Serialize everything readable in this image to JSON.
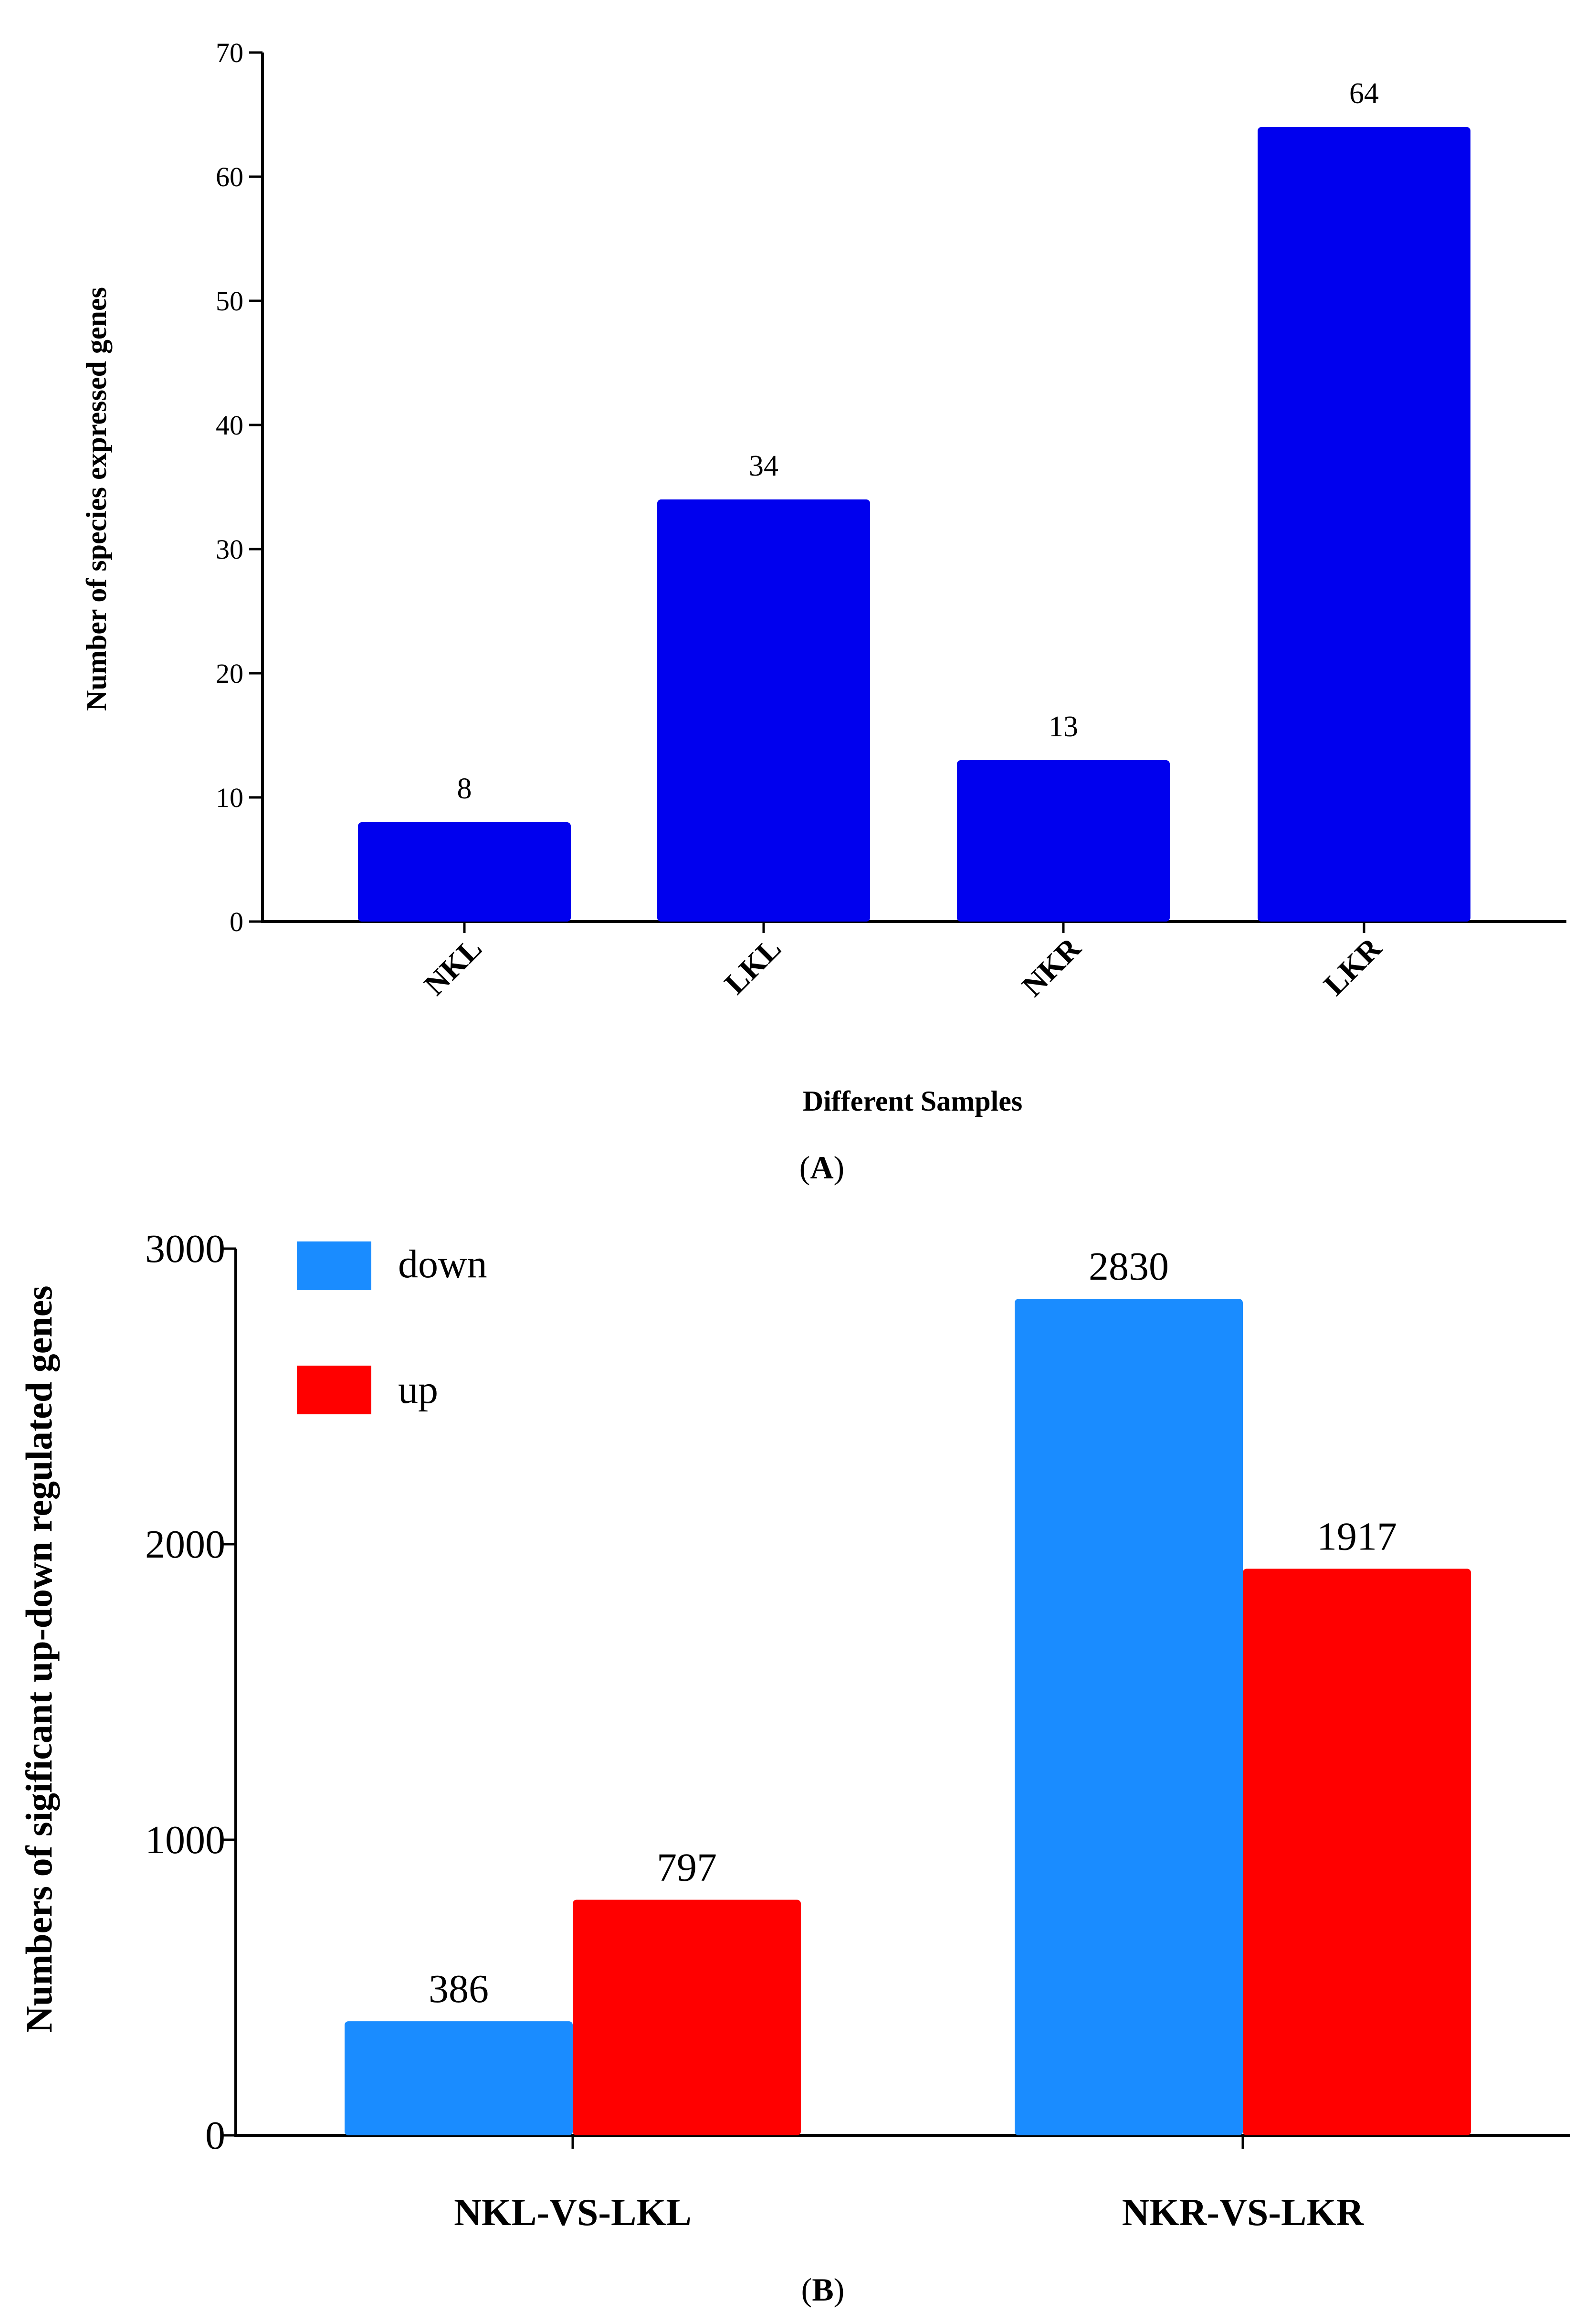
{
  "chart_data": [
    {
      "panel": "A",
      "type": "bar",
      "categories": [
        "NKL",
        "LKL",
        "NKR",
        "LKR"
      ],
      "values": [
        8,
        34,
        13,
        64
      ],
      "data_labels": [
        "8",
        "34",
        "13",
        "64"
      ],
      "ylim": [
        0,
        70
      ],
      "yticks": [
        0,
        10,
        20,
        30,
        40,
        50,
        60,
        70
      ],
      "xlabel": "Different Samples",
      "ylabel": "Number of species expressed genes",
      "panel_label": "A",
      "color": "#0000ee"
    },
    {
      "panel": "B",
      "type": "bar",
      "categories": [
        "NKL-VS-LKL",
        "NKR-VS-LKR"
      ],
      "series": [
        {
          "name": "down",
          "values": [
            386,
            2830
          ],
          "labels": [
            "386",
            "2830"
          ],
          "color": "#1a8cff"
        },
        {
          "name": "up",
          "values": [
            797,
            1917
          ],
          "labels": [
            "797",
            "1917"
          ],
          "color": "#ff0000"
        }
      ],
      "ylim": [
        0,
        3000
      ],
      "yticks": [
        0,
        1000,
        2000,
        3000
      ],
      "xlabel": "",
      "ylabel": "Numbers of sigificant up-down regulated genes",
      "legend": "top-left",
      "panel_label": "B"
    }
  ]
}
